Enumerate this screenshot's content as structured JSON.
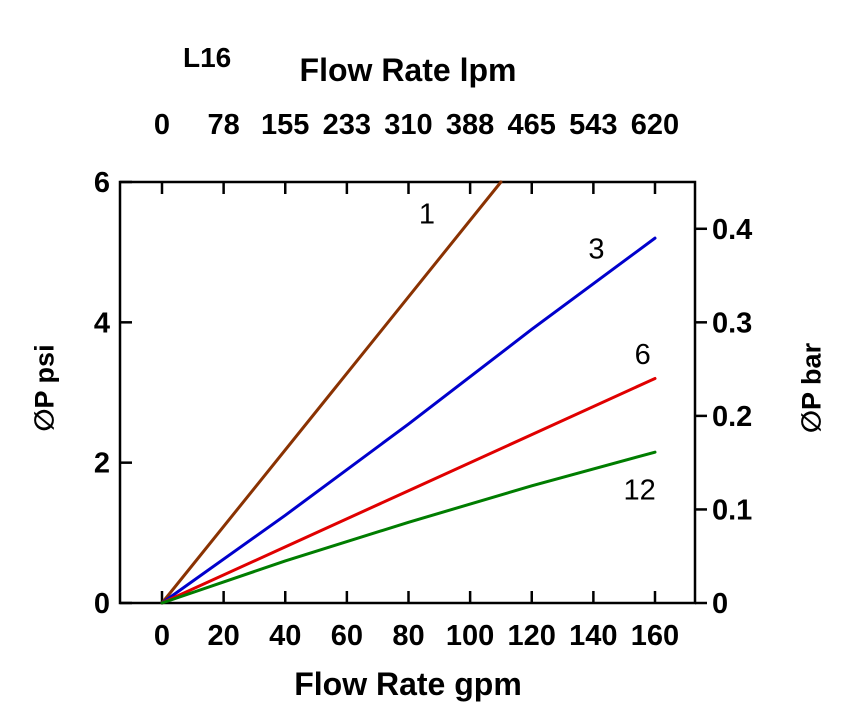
{
  "chart_data": {
    "type": "line",
    "model_label": "L16",
    "top_axis": {
      "title": "Flow Rate lpm",
      "ticks": [
        0,
        78,
        155,
        233,
        310,
        388,
        465,
        543,
        620
      ]
    },
    "bottom_axis": {
      "title": "Flow Rate gpm",
      "ticks": [
        0,
        20,
        40,
        60,
        80,
        100,
        120,
        140,
        160
      ],
      "range": [
        0,
        160
      ]
    },
    "left_axis": {
      "title": "∅P psi",
      "ticks": [
        0,
        2,
        4,
        6
      ],
      "range": [
        0,
        6
      ]
    },
    "right_axis": {
      "title": "∅P bar",
      "ticks": [
        0,
        0.1,
        0.2,
        0.3,
        0.4
      ],
      "range": [
        0,
        0.45
      ]
    },
    "legend_position": "labels-on-lines",
    "grid": false,
    "series": [
      {
        "label": "1",
        "color": "#8a3202",
        "points_gpm_psi": [
          [
            0,
            0
          ],
          [
            55,
            3.0
          ],
          [
            110,
            6.0
          ]
        ],
        "label_at_gpm_psi": [
          86,
          5.55
        ]
      },
      {
        "label": "3",
        "color": "#0000cc",
        "points_gpm_psi": [
          [
            0,
            0
          ],
          [
            40,
            1.25
          ],
          [
            80,
            2.55
          ],
          [
            120,
            3.9
          ],
          [
            160,
            5.2
          ]
        ],
        "label_at_gpm_psi": [
          141,
          5.05
        ]
      },
      {
        "label": "6",
        "color": "#e00000",
        "points_gpm_psi": [
          [
            0,
            0
          ],
          [
            40,
            0.8
          ],
          [
            80,
            1.6
          ],
          [
            120,
            2.4
          ],
          [
            160,
            3.2
          ]
        ],
        "label_at_gpm_psi": [
          156,
          3.55
        ]
      },
      {
        "label": "12",
        "color": "#007d00",
        "points_gpm_psi": [
          [
            0,
            0
          ],
          [
            40,
            0.6
          ],
          [
            80,
            1.15
          ],
          [
            120,
            1.67
          ],
          [
            160,
            2.15
          ]
        ],
        "label_at_gpm_psi": [
          155,
          1.62
        ]
      }
    ]
  }
}
